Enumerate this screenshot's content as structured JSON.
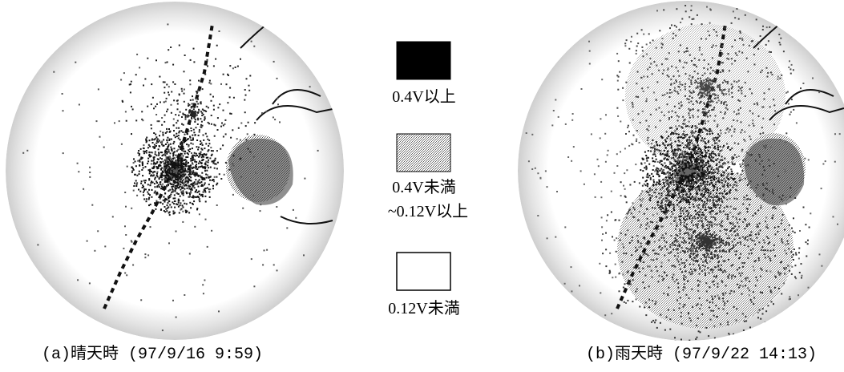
{
  "panels": [
    {
      "caption": "(a)晴天時 (97/9/16 9:59)"
    },
    {
      "caption": "(b)雨天時 (97/9/22 14:13)"
    }
  ],
  "legend": {
    "items": [
      {
        "lines": [
          "0.4V以上"
        ]
      },
      {
        "lines": [
          "0.4V未満",
          "~0.12V以上"
        ]
      },
      {
        "lines": [
          "0.12V未満"
        ]
      }
    ]
  }
}
